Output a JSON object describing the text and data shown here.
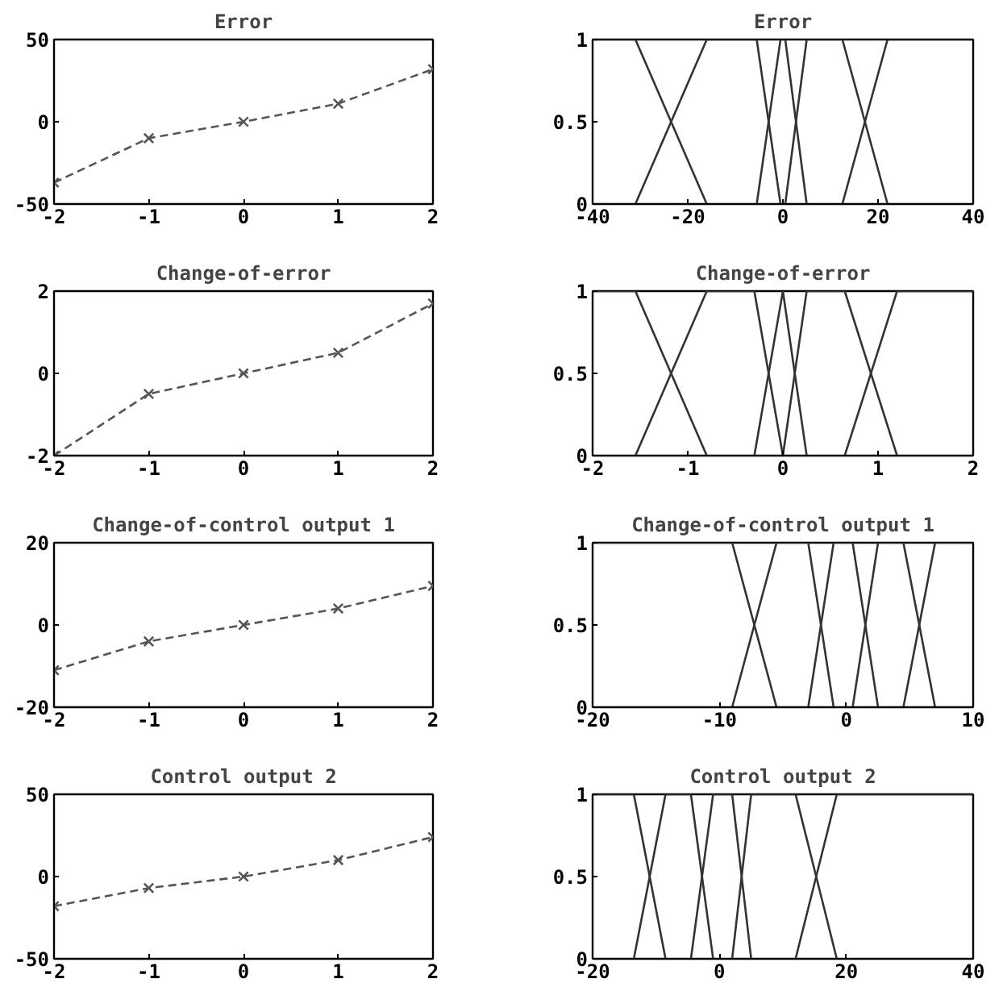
{
  "chart_data": [
    {
      "type": "line",
      "title": "Error",
      "x": [
        -2,
        -1,
        0,
        1,
        2
      ],
      "series": [
        {
          "color": "#555555",
          "values": [
            -37,
            -10,
            0,
            11,
            32
          ]
        }
      ],
      "xlim": [
        -2,
        2
      ],
      "ylim": [
        -50,
        50
      ],
      "xticks": [
        -2,
        -1,
        0,
        1,
        2
      ],
      "yticks": [
        -50,
        0,
        50
      ],
      "marker": "cross",
      "line_style": "dashed"
    },
    {
      "type": "line",
      "title": "Error",
      "series": [
        {
          "color": "#333333",
          "x": [
            -40,
            -31,
            -16
          ],
          "values": [
            1,
            1,
            0
          ]
        },
        {
          "color": "#333333",
          "x": [
            -31,
            -16,
            -5.5,
            -0.5
          ],
          "values": [
            0,
            1,
            1,
            0
          ]
        },
        {
          "color": "#333333",
          "x": [
            -5.5,
            -0.5,
            0.5,
            5
          ],
          "values": [
            0,
            1,
            1,
            0
          ]
        },
        {
          "color": "#333333",
          "x": [
            0.5,
            5,
            12.5,
            22
          ],
          "values": [
            0,
            1,
            1,
            0
          ]
        },
        {
          "color": "#333333",
          "x": [
            12.5,
            22,
            40
          ],
          "values": [
            0,
            1,
            1
          ]
        }
      ],
      "xlim": [
        -40,
        40
      ],
      "ylim": [
        0,
        1
      ],
      "xticks": [
        -40,
        -20,
        0,
        20,
        40
      ],
      "yticks": [
        0,
        0.5,
        1
      ],
      "line_style": "solid"
    },
    {
      "type": "line",
      "title": "Change-of-error",
      "x": [
        -2,
        -1,
        0,
        1,
        2
      ],
      "series": [
        {
          "color": "#555555",
          "values": [
            -2,
            -0.5,
            0,
            0.5,
            1.7
          ]
        }
      ],
      "xlim": [
        -2,
        2
      ],
      "ylim": [
        -2,
        2
      ],
      "xticks": [
        -2,
        -1,
        0,
        1,
        2
      ],
      "yticks": [
        -2,
        0,
        2
      ],
      "marker": "cross",
      "line_style": "dashed"
    },
    {
      "type": "line",
      "title": "Change-of-error",
      "series": [
        {
          "color": "#333333",
          "x": [
            -2,
            -1.55,
            -0.8
          ],
          "values": [
            1,
            1,
            0
          ]
        },
        {
          "color": "#333333",
          "x": [
            -1.55,
            -0.8,
            -0.3,
            0
          ],
          "values": [
            0,
            1,
            1,
            0
          ]
        },
        {
          "color": "#333333",
          "x": [
            -0.3,
            0,
            0.25
          ],
          "values": [
            0,
            1,
            0
          ]
        },
        {
          "color": "#333333",
          "x": [
            0,
            0.25,
            0.65,
            1.2
          ],
          "values": [
            0,
            1,
            1,
            0
          ]
        },
        {
          "color": "#333333",
          "x": [
            0.65,
            1.2,
            2
          ],
          "values": [
            0,
            1,
            1
          ]
        }
      ],
      "xlim": [
        -2,
        2
      ],
      "ylim": [
        0,
        1
      ],
      "xticks": [
        -2,
        -1,
        0,
        1,
        2
      ],
      "yticks": [
        0,
        0.5,
        1
      ],
      "line_style": "solid"
    },
    {
      "type": "line",
      "title": "Change-of-control output 1",
      "x": [
        -2,
        -1,
        0,
        1,
        2
      ],
      "series": [
        {
          "color": "#555555",
          "values": [
            -11,
            -4,
            0,
            4,
            9.5
          ]
        }
      ],
      "xlim": [
        -2,
        2
      ],
      "ylim": [
        -20,
        20
      ],
      "xticks": [
        -2,
        -1,
        0,
        1,
        2
      ],
      "yticks": [
        -20,
        0,
        20
      ],
      "marker": "cross",
      "line_style": "dashed"
    },
    {
      "type": "line",
      "title": "Change-of-control output 1",
      "series": [
        {
          "color": "#333333",
          "x": [
            -20,
            -9,
            -5.5
          ],
          "values": [
            1,
            1,
            0
          ]
        },
        {
          "color": "#333333",
          "x": [
            -9,
            -5.5,
            -3,
            -1
          ],
          "values": [
            0,
            1,
            1,
            0
          ]
        },
        {
          "color": "#333333",
          "x": [
            -3,
            -1,
            0.5,
            2.5
          ],
          "values": [
            0,
            1,
            1,
            0
          ]
        },
        {
          "color": "#333333",
          "x": [
            0.5,
            2.5,
            4.5,
            7
          ],
          "values": [
            0,
            1,
            1,
            0
          ]
        },
        {
          "color": "#333333",
          "x": [
            4.5,
            7,
            10
          ],
          "values": [
            0,
            1,
            1
          ]
        }
      ],
      "xlim": [
        -20,
        10
      ],
      "ylim": [
        0,
        1
      ],
      "xticks": [
        -20,
        -10,
        0,
        10
      ],
      "yticks": [
        0,
        0.5,
        1
      ],
      "line_style": "solid"
    },
    {
      "type": "line",
      "title": "Control output 2",
      "x": [
        -2,
        -1,
        0,
        1,
        2
      ],
      "series": [
        {
          "color": "#555555",
          "values": [
            -18,
            -7,
            0,
            10,
            24
          ]
        }
      ],
      "xlim": [
        -2,
        2
      ],
      "ylim": [
        -50,
        50
      ],
      "xticks": [
        -2,
        -1,
        0,
        1,
        2
      ],
      "yticks": [
        -50,
        0,
        50
      ],
      "marker": "cross",
      "line_style": "dashed"
    },
    {
      "type": "line",
      "title": "Control output 2",
      "series": [
        {
          "color": "#333333",
          "x": [
            -20,
            -13.5,
            -8.5
          ],
          "values": [
            1,
            1,
            0
          ]
        },
        {
          "color": "#333333",
          "x": [
            -13.5,
            -8.5,
            -4.5,
            -1
          ],
          "values": [
            0,
            1,
            1,
            0
          ]
        },
        {
          "color": "#333333",
          "x": [
            -4.5,
            -1,
            2,
            5
          ],
          "values": [
            0,
            1,
            1,
            0
          ]
        },
        {
          "color": "#333333",
          "x": [
            2,
            5,
            12,
            18.5
          ],
          "values": [
            0,
            1,
            1,
            0
          ]
        },
        {
          "color": "#333333",
          "x": [
            12,
            18.5,
            40
          ],
          "values": [
            0,
            1,
            1
          ]
        }
      ],
      "xlim": [
        -20,
        40
      ],
      "ylim": [
        0,
        1
      ],
      "xticks": [
        -20,
        0,
        20,
        40
      ],
      "yticks": [
        0,
        0.5,
        1
      ],
      "line_style": "solid"
    }
  ]
}
